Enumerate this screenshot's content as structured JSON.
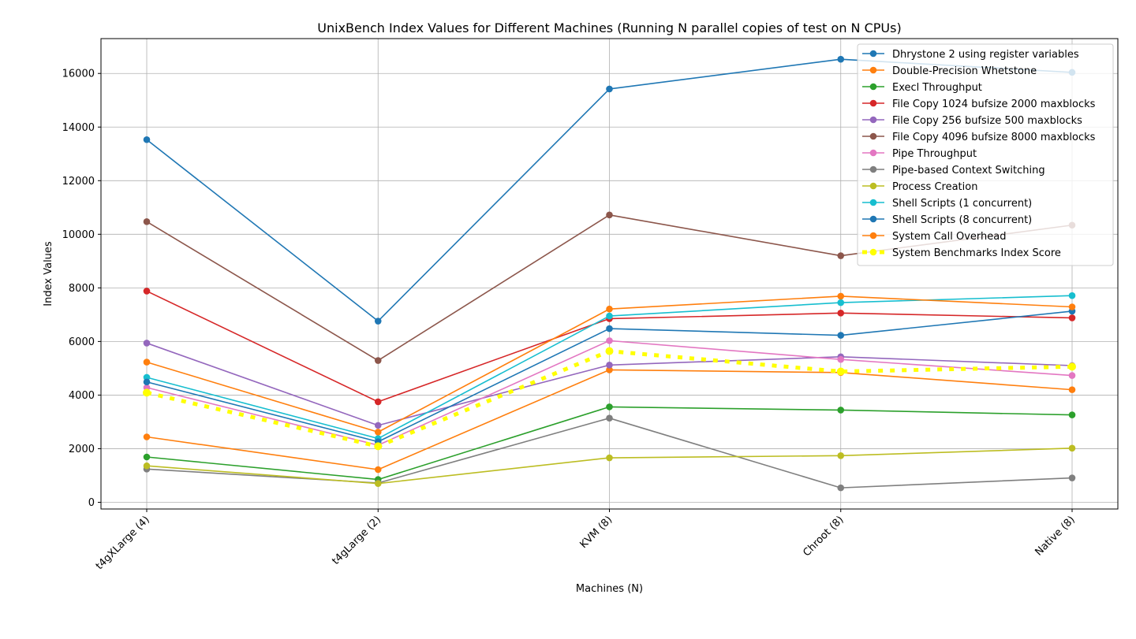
{
  "chart_data": {
    "type": "line",
    "title": "UnixBench Index Values for Different Machines (Running N parallel copies of test on N CPUs)",
    "xlabel": "Machines (N)",
    "ylabel": "Index Values",
    "categories": [
      "t4gXLarge (4)",
      "t4gLarge (2)",
      "KVM (8)",
      "Chroot (8)",
      "Native (8)"
    ],
    "ylim": [
      -250,
      17300
    ],
    "yticks": [
      0,
      2000,
      4000,
      6000,
      8000,
      10000,
      12000,
      14000,
      16000
    ],
    "grid": true,
    "legend_position": "top-right",
    "series": [
      {
        "name": "Dhrystone 2 using register variables",
        "color": "#1f77b4",
        "values": [
          13530,
          6760,
          15420,
          16530,
          16040
        ]
      },
      {
        "name": "Double-Precision Whetstone",
        "color": "#ff7f0e",
        "values": [
          2440,
          1220,
          4940,
          4840,
          4200
        ]
      },
      {
        "name": "Execl Throughput",
        "color": "#2ca02c",
        "values": [
          1690,
          850,
          3560,
          3440,
          3260
        ]
      },
      {
        "name": "File Copy 1024 bufsize 2000 maxblocks",
        "color": "#d62728",
        "values": [
          7880,
          3750,
          6850,
          7060,
          6880
        ]
      },
      {
        "name": "File Copy 256 bufsize 500 maxblocks",
        "color": "#9467bd",
        "values": [
          5940,
          2870,
          5120,
          5430,
          5100
        ]
      },
      {
        "name": "File Copy 4096 bufsize 8000 maxblocks",
        "color": "#8c564b",
        "values": [
          10470,
          5290,
          10720,
          9200,
          10340
        ]
      },
      {
        "name": "Pipe Throughput",
        "color": "#e377c2",
        "values": [
          4280,
          2130,
          6030,
          5330,
          4730
        ]
      },
      {
        "name": "Pipe-based Context Switching",
        "color": "#7f7f7f",
        "values": [
          1240,
          720,
          3140,
          540,
          910
        ]
      },
      {
        "name": "Process Creation",
        "color": "#bcbd22",
        "values": [
          1360,
          700,
          1660,
          1740,
          2020
        ]
      },
      {
        "name": "Shell Scripts (1 concurrent)",
        "color": "#17becf",
        "values": [
          4660,
          2380,
          6950,
          7450,
          7710
        ]
      },
      {
        "name": "Shell Scripts (8 concurrent)",
        "color": "#1f77b4",
        "values": [
          4490,
          2260,
          6480,
          6230,
          7130
        ]
      },
      {
        "name": "System Call Overhead",
        "color": "#ff7f0e",
        "values": [
          5230,
          2620,
          7210,
          7690,
          7290
        ]
      },
      {
        "name": "System Benchmarks Index Score",
        "color": "#ffff00",
        "dashed": true,
        "values": [
          4090,
          2090,
          5640,
          4880,
          5060
        ]
      }
    ]
  }
}
